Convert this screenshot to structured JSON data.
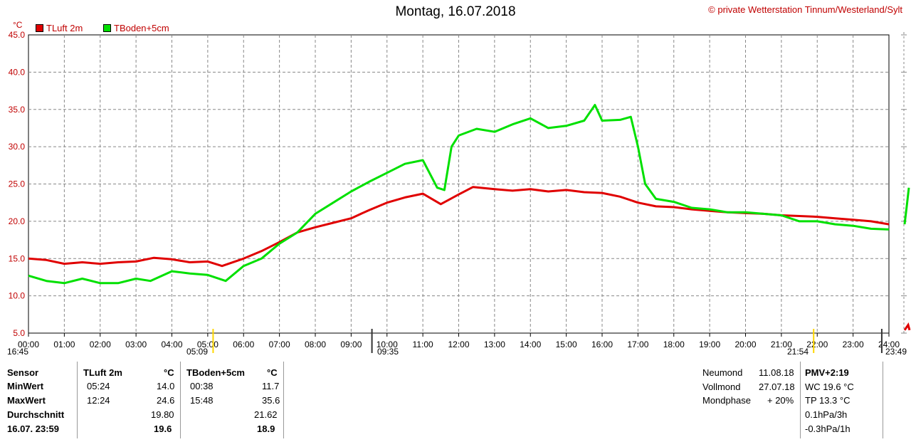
{
  "header": {
    "title": "Montag, 16.07.2018",
    "copyright": "© private Wetterstation Tinnum/Westerland/Sylt",
    "unit": "°C"
  },
  "legend": [
    {
      "label": "TLuft 2m",
      "color": "#e00000"
    },
    {
      "label": "TBoden+5cm",
      "color": "#00e000"
    }
  ],
  "chart_data": {
    "type": "line",
    "x_unit": "hours",
    "xlim": [
      0,
      24
    ],
    "ylim": [
      5,
      45
    ],
    "y_ticks": [
      "5.0",
      "10.0",
      "15.0",
      "20.0",
      "25.0",
      "30.0",
      "35.0",
      "40.0",
      "45.0"
    ],
    "x_ticks": [
      "00:00",
      "01:00",
      "02:00",
      "03:00",
      "04:00",
      "05:00",
      "06:00",
      "07:00",
      "08:00",
      "09:00",
      "10:00",
      "11:00",
      "12:00",
      "13:00",
      "14:00",
      "15:00",
      "16:00",
      "17:00",
      "18:00",
      "19:00",
      "20:00",
      "21:00",
      "22:00",
      "23:00",
      "24:00"
    ],
    "grid": true,
    "series": [
      {
        "name": "TLuft 2m",
        "color": "#e00000",
        "x": [
          0,
          0.5,
          1,
          1.5,
          2,
          2.5,
          3,
          3.5,
          4,
          4.5,
          5,
          5.4,
          6,
          6.5,
          7,
          7.5,
          8,
          8.5,
          9,
          9.5,
          10,
          10.5,
          11,
          11.5,
          12,
          12.4,
          13,
          13.5,
          14,
          14.5,
          15,
          15.5,
          16,
          16.5,
          17,
          17.5,
          18,
          18.5,
          19,
          19.5,
          20,
          20.5,
          21,
          21.5,
          22,
          22.5,
          23,
          23.5,
          24
        ],
        "y": [
          15.0,
          14.8,
          14.3,
          14.5,
          14.3,
          14.5,
          14.6,
          15.1,
          14.9,
          14.5,
          14.6,
          14.0,
          15.0,
          16.0,
          17.2,
          18.5,
          19.2,
          19.8,
          20.4,
          21.5,
          22.5,
          23.2,
          23.7,
          22.3,
          23.6,
          24.6,
          24.3,
          24.1,
          24.3,
          24.0,
          24.2,
          23.9,
          23.8,
          23.3,
          22.5,
          22.0,
          21.9,
          21.6,
          21.4,
          21.2,
          21.1,
          21.0,
          20.8,
          20.7,
          20.6,
          20.4,
          20.2,
          20.0,
          19.6
        ]
      },
      {
        "name": "TBoden+5cm",
        "color": "#00e000",
        "x": [
          0,
          0.5,
          1,
          1.5,
          2,
          2.5,
          3,
          3.4,
          4,
          4.5,
          5,
          5.5,
          6,
          6.5,
          7,
          7.5,
          8,
          8.5,
          9,
          9.5,
          10,
          10.5,
          11,
          11.4,
          11.6,
          11.8,
          12,
          12.5,
          13,
          13.5,
          14,
          14.5,
          15,
          15.5,
          15.8,
          16,
          16.5,
          16.8,
          17,
          17.2,
          17.5,
          18,
          18.5,
          19,
          19.5,
          20,
          20.5,
          21,
          21.5,
          22,
          22.5,
          23,
          23.5,
          24
        ],
        "y": [
          12.7,
          12.0,
          11.7,
          12.3,
          11.7,
          11.7,
          12.3,
          12.0,
          13.3,
          13.0,
          12.8,
          12.0,
          14.0,
          15.0,
          17.0,
          18.5,
          21.0,
          22.5,
          24.0,
          25.3,
          26.5,
          27.7,
          28.2,
          24.5,
          24.2,
          30.0,
          31.5,
          32.4,
          32.0,
          33.0,
          33.8,
          32.5,
          32.8,
          33.5,
          35.6,
          33.5,
          33.6,
          34.0,
          30.0,
          25.0,
          23.0,
          22.6,
          21.8,
          21.6,
          21.2,
          21.2,
          21.0,
          20.8,
          20.0,
          20.0,
          19.6,
          19.4,
          19.0,
          18.9
        ]
      }
    ]
  },
  "markers": {
    "left_time": "16:45",
    "sunrise": "05:09",
    "moon": "09:35",
    "sunset": "21:54",
    "right_time": "23:49"
  },
  "stats": {
    "sensor_label": "Sensor",
    "rows_labels": [
      "MinWert",
      "MaxWert",
      "Durchschnitt",
      "16.07. 23:59"
    ],
    "s1": {
      "name": "TLuft 2m",
      "unit": "°C",
      "min_time": "05:24",
      "min": "14.0",
      "max_time": "12:24",
      "max": "24.6",
      "avg": "19.80",
      "current": "19.6"
    },
    "s2": {
      "name": "TBoden+5cm",
      "unit": "°C",
      "min_time": "00:38",
      "min": "11.7",
      "max_time": "15:48",
      "max": "35.6",
      "avg": "21.62",
      "current": "18.9"
    }
  },
  "moon": [
    {
      "label": "Neumond",
      "value": "11.08.18"
    },
    {
      "label": "Vollmond",
      "value": "27.07.18"
    },
    {
      "label": "Mondphase",
      "value": "+ 20%"
    }
  ],
  "pmv": {
    "title": "PMV+2:19",
    "lines": [
      "WC 19.6 °C",
      "TP 13.3 °C",
      "0.1hPa/3h",
      "-0.3hPa/1h"
    ]
  }
}
